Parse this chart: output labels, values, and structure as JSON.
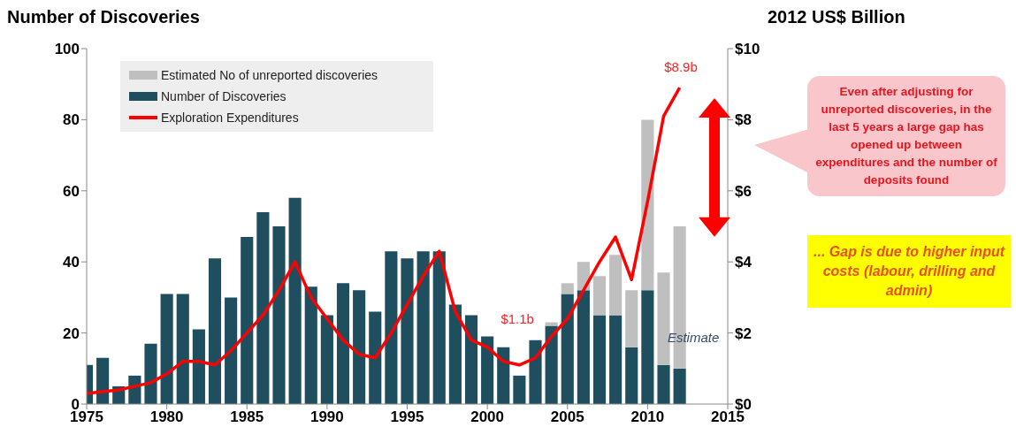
{
  "chart_data": {
    "type": "bar",
    "ylabel": "Number of Discoveries",
    "y2label": "2012 US$ Billion",
    "x": [
      1975,
      1976,
      1977,
      1978,
      1979,
      1980,
      1981,
      1982,
      1983,
      1984,
      1985,
      1986,
      1987,
      1988,
      1989,
      1990,
      1991,
      1992,
      1993,
      1994,
      1995,
      1996,
      1997,
      1998,
      1999,
      2000,
      2001,
      2002,
      2003,
      2004,
      2005,
      2006,
      2007,
      2008,
      2009,
      2010,
      2011,
      2012
    ],
    "stacked": true,
    "series": [
      {
        "name": "Number of Discoveries",
        "color": "#1f4e5f",
        "values": [
          11,
          13,
          5,
          8,
          17,
          31,
          31,
          21,
          41,
          30,
          47,
          54,
          50,
          58,
          33,
          25,
          34,
          32,
          26,
          43,
          41,
          43,
          43,
          28,
          25,
          19,
          16,
          8,
          18,
          22,
          31,
          32,
          25,
          25,
          16,
          32,
          11,
          10
        ]
      },
      {
        "name": "Estimated No of unreported discoveries",
        "color": "#bfbfbf",
        "values": [
          0,
          0,
          0,
          0,
          0,
          0,
          0,
          0,
          0,
          0,
          0,
          0,
          0,
          0,
          0,
          0,
          0,
          0,
          0,
          0,
          0,
          0,
          0,
          0,
          0,
          0,
          0,
          0,
          0,
          1,
          3,
          8,
          11,
          17,
          16,
          48,
          26,
          40
        ]
      },
      {
        "name": "Exploration Expenditures",
        "type": "line",
        "axis": "y2",
        "color": "#ff0000",
        "values": [
          0.3,
          0.35,
          0.4,
          0.5,
          0.6,
          0.85,
          1.2,
          1.2,
          1.1,
          1.5,
          2.0,
          2.5,
          3.2,
          4.0,
          3.0,
          2.4,
          1.8,
          1.4,
          1.3,
          2.0,
          2.8,
          3.6,
          4.3,
          2.6,
          1.8,
          1.6,
          1.2,
          1.1,
          1.3,
          1.9,
          2.4,
          3.2,
          4.0,
          4.7,
          3.5,
          5.7,
          8.1,
          8.9
        ]
      }
    ],
    "xlim": [
      1975,
      2015
    ],
    "xticks": [
      1975,
      1980,
      1985,
      1990,
      1995,
      2000,
      2005,
      2010,
      2015
    ],
    "ylim": [
      0,
      100
    ],
    "yticks": [
      0,
      20,
      40,
      60,
      80,
      100
    ],
    "y2lim": [
      0,
      10
    ],
    "y2ticks": [
      {
        "value": 0,
        "label": "$0"
      },
      {
        "value": 2,
        "label": "$2"
      },
      {
        "value": 4,
        "label": "$4"
      },
      {
        "value": 6,
        "label": "$6"
      },
      {
        "value": 8,
        "label": "$8"
      },
      {
        "value": 10,
        "label": "$10"
      }
    ],
    "grid": false,
    "legend": "top left",
    "line_style": "solid",
    "annotations": [
      "$8.9b",
      "$1.1b",
      "Estimate",
      "Even after adjusting for unreported discoveries, in the last 5 years a large gap has opened up between expenditures and the number of deposits found",
      "... Gap  is due to higher input costs (labour, drilling and admin)"
    ]
  }
}
